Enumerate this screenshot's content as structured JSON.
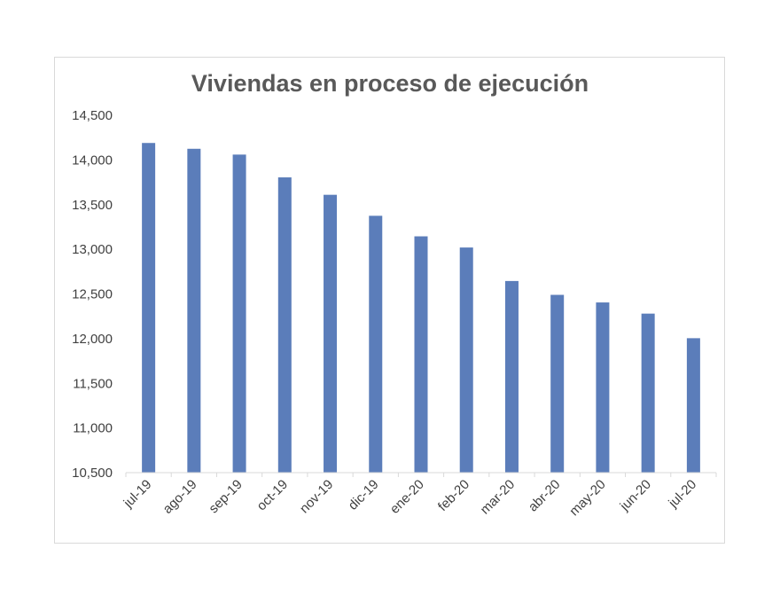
{
  "chart_data": {
    "type": "bar",
    "title": "Viviendas en proceso de ejecución",
    "xlabel": "",
    "ylabel": "",
    "categories": [
      "jul-19",
      "ago-19",
      "sep-19",
      "oct-19",
      "nov-19",
      "dic-19",
      "ene-20",
      "feb-20",
      "mar-20",
      "abr-20",
      "may-20",
      "jun-20",
      "jul-20"
    ],
    "values": [
      14190,
      14125,
      14060,
      13805,
      13610,
      13375,
      13145,
      13020,
      12645,
      12490,
      12405,
      12280,
      12005
    ],
    "ylim": [
      10500,
      14500
    ],
    "yticks": [
      10500,
      11000,
      11500,
      12000,
      12500,
      13000,
      13500,
      14000,
      14500
    ],
    "ytick_labels": [
      "10,500",
      "11,000",
      "11,500",
      "12,000",
      "12,500",
      "13,000",
      "13,500",
      "14,000",
      "14,500"
    ],
    "bar_color": "#5b7dba",
    "grid": false,
    "legend": "none"
  }
}
